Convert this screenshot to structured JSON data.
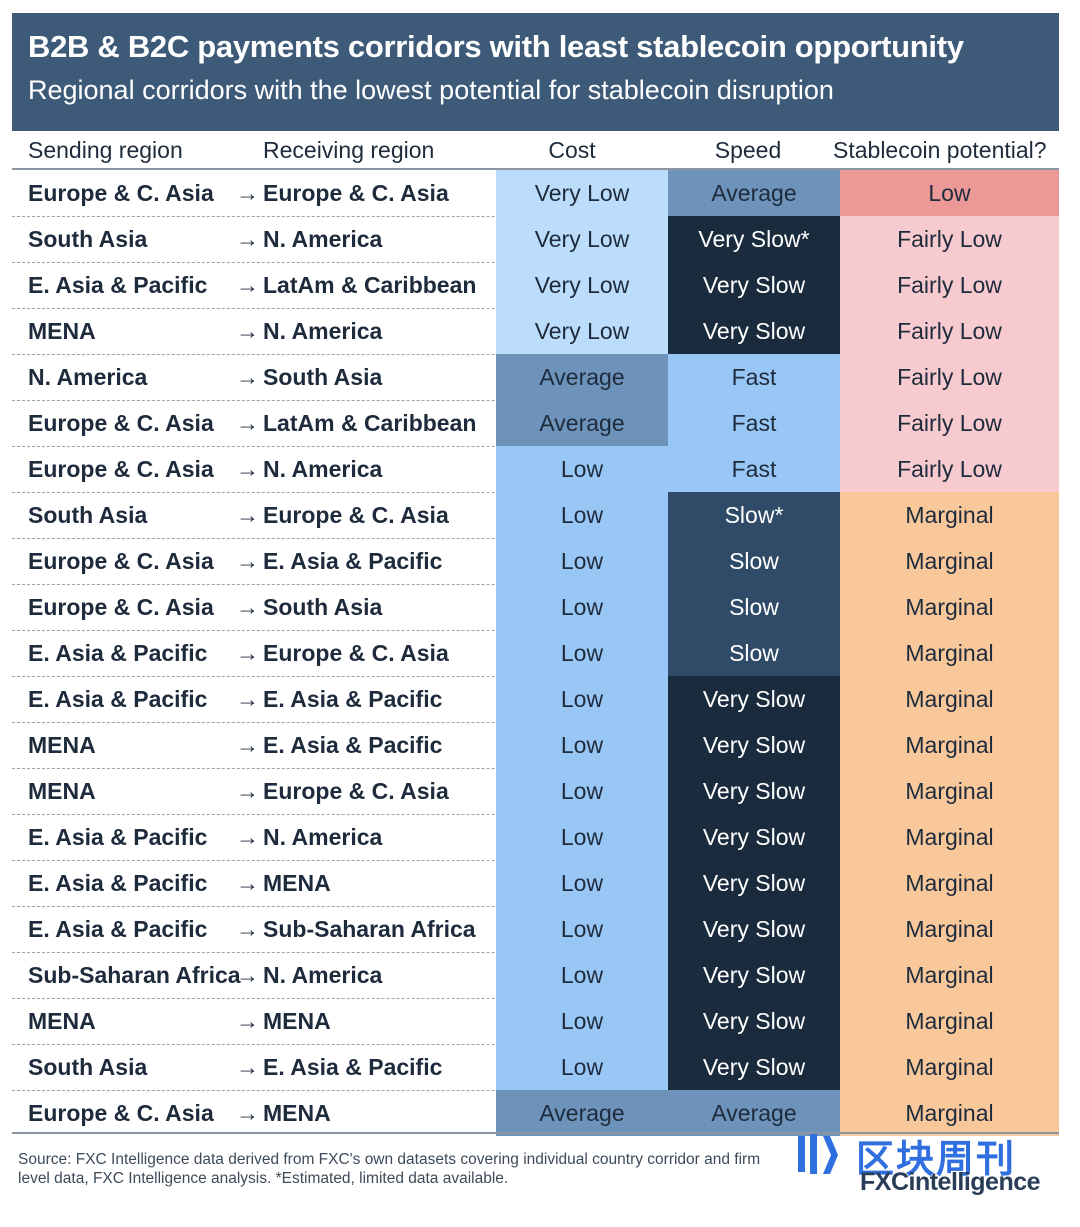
{
  "header": {
    "title": "B2B & B2C payments corridors with least stablecoin opportunity",
    "subtitle": "Regional corridors with the lowest potential for stablecoin disruption"
  },
  "columns": {
    "sending": "Sending region",
    "receiving": "Receiving region",
    "cost": "Cost",
    "speed": "Speed",
    "potential": "Stablecoin potential?"
  },
  "colors": {
    "very_low_cost": "#bcdcfb",
    "low_cost": "#99c7f5",
    "average": "#6d93bb",
    "fast": "#99c7f5",
    "slow": "#2f4b68",
    "very_slow": "#1a2b3e",
    "low_potential": "#ec9897",
    "fairly_low_potential": "#f6cace",
    "marginal_potential": "#f8c89a",
    "header_bg": "#3d5a78"
  },
  "chart_data": {
    "type": "table",
    "title": "B2B & B2C payments corridors with least stablecoin opportunity",
    "subtitle": "Regional corridors with the lowest potential for stablecoin disruption",
    "columns": [
      "Sending region",
      "Receiving region",
      "Cost",
      "Speed",
      "Stablecoin potential?"
    ],
    "rows": [
      [
        "Europe & C. Asia",
        "Europe & C. Asia",
        "Very Low",
        "Average",
        "Low"
      ],
      [
        "South Asia",
        "N. America",
        "Very Low",
        "Very Slow*",
        "Fairly Low"
      ],
      [
        "E. Asia & Pacific",
        "LatAm & Caribbean",
        "Very Low",
        "Very Slow",
        "Fairly Low"
      ],
      [
        "MENA",
        "N. America",
        "Very Low",
        "Very Slow",
        "Fairly Low"
      ],
      [
        "N. America",
        "South Asia",
        "Average",
        "Fast",
        "Fairly Low"
      ],
      [
        "Europe & C. Asia",
        "LatAm & Caribbean",
        "Average",
        "Fast",
        "Fairly Low"
      ],
      [
        "Europe & C. Asia",
        "N. America",
        "Low",
        "Fast",
        "Fairly Low"
      ],
      [
        "South Asia",
        "Europe & C. Asia",
        "Low",
        "Slow*",
        "Marginal"
      ],
      [
        "Europe & C. Asia",
        "E. Asia & Pacific",
        "Low",
        "Slow",
        "Marginal"
      ],
      [
        "Europe & C. Asia",
        "South Asia",
        "Low",
        "Slow",
        "Marginal"
      ],
      [
        "E. Asia & Pacific",
        "Europe & C. Asia",
        "Low",
        "Slow",
        "Marginal"
      ],
      [
        "E. Asia & Pacific",
        "E. Asia & Pacific",
        "Low",
        "Very Slow",
        "Marginal"
      ],
      [
        "MENA",
        "E. Asia & Pacific",
        "Low",
        "Very Slow",
        "Marginal"
      ],
      [
        "MENA",
        "Europe & C. Asia",
        "Low",
        "Very Slow",
        "Marginal"
      ],
      [
        "E. Asia & Pacific",
        "N. America",
        "Low",
        "Very Slow",
        "Marginal"
      ],
      [
        "E. Asia & Pacific",
        "MENA",
        "Low",
        "Very Slow",
        "Marginal"
      ],
      [
        "E. Asia & Pacific",
        "Sub-Saharan Africa",
        "Low",
        "Very Slow",
        "Marginal"
      ],
      [
        "Sub-Saharan Africa",
        "N. America",
        "Low",
        "Very Slow",
        "Marginal"
      ],
      [
        "MENA",
        "MENA",
        "Low",
        "Very Slow",
        "Marginal"
      ],
      [
        "South Asia",
        "E. Asia & Pacific",
        "Low",
        "Very Slow",
        "Marginal"
      ],
      [
        "Europe & C. Asia",
        "MENA",
        "Average",
        "Average",
        "Marginal"
      ]
    ]
  },
  "footer": {
    "source": "Source: FXC Intelligence data derived from FXC's own datasets covering individual country corridor and firm level data, FXC Intelligence analysis. *Estimated, limited data available.",
    "watermark_cn": "区块周刊",
    "logo_text": "FXCintelligence"
  }
}
